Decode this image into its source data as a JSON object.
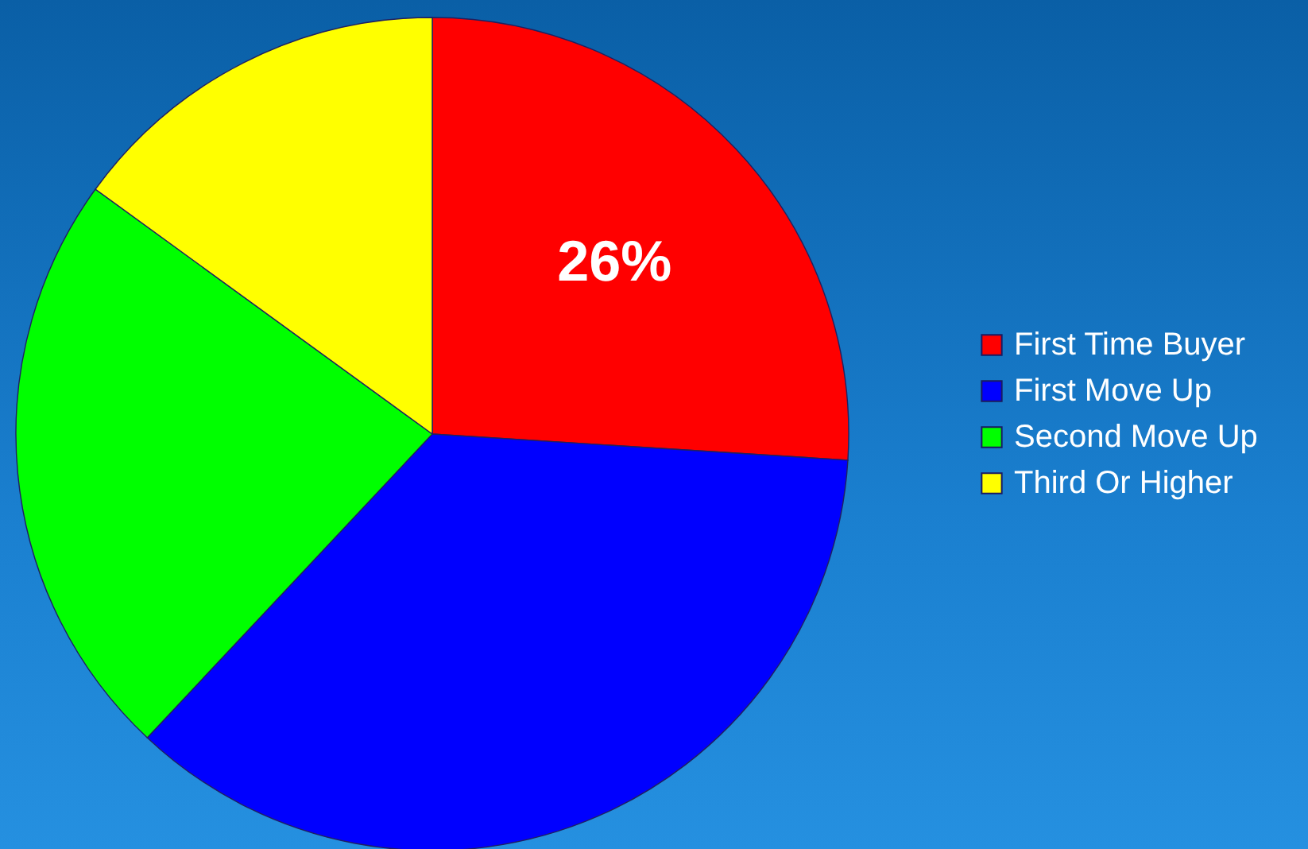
{
  "chart_data": {
    "type": "pie",
    "categories": [
      "First Time Buyer",
      "First Move Up",
      "Second Move Up",
      "Third Or Higher"
    ],
    "values": [
      26,
      36,
      23,
      15
    ],
    "colors": [
      "#ff0000",
      "#0000ff",
      "#00ff00",
      "#ffff00"
    ],
    "value_labels": [
      "26%",
      null,
      null,
      null
    ],
    "legend": "right"
  }
}
